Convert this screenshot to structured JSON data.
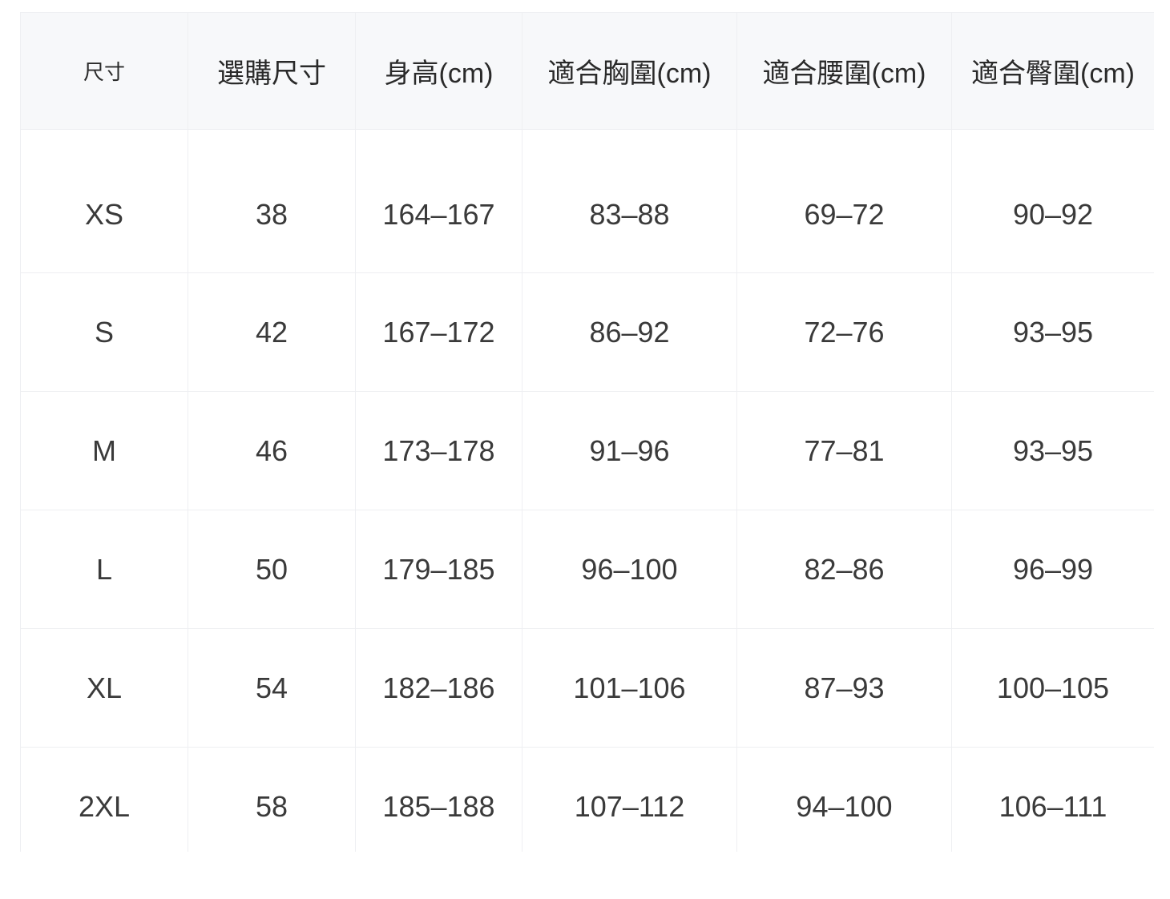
{
  "table": {
    "headers": [
      "尺寸",
      "選購尺寸",
      "身高(cm)",
      "適合胸圍(cm)",
      "適合腰圍(cm)",
      "適合臀圍(cm)"
    ],
    "rows": [
      [
        "XS",
        "38",
        "164–167",
        "83–88",
        "69–72",
        "90–92"
      ],
      [
        "S",
        "42",
        "167–172",
        "86–92",
        "72–76",
        "93–95"
      ],
      [
        "M",
        "46",
        "173–178",
        "91–96",
        "77–81",
        "93–95"
      ],
      [
        "L",
        "50",
        "179–185",
        "96–100",
        "82–86",
        "96–99"
      ],
      [
        "XL",
        "54",
        "182–186",
        "101–106",
        "87–93",
        "100–105"
      ],
      [
        "2XL",
        "58",
        "185–188",
        "107–112",
        "94–100",
        "106–111"
      ]
    ]
  }
}
